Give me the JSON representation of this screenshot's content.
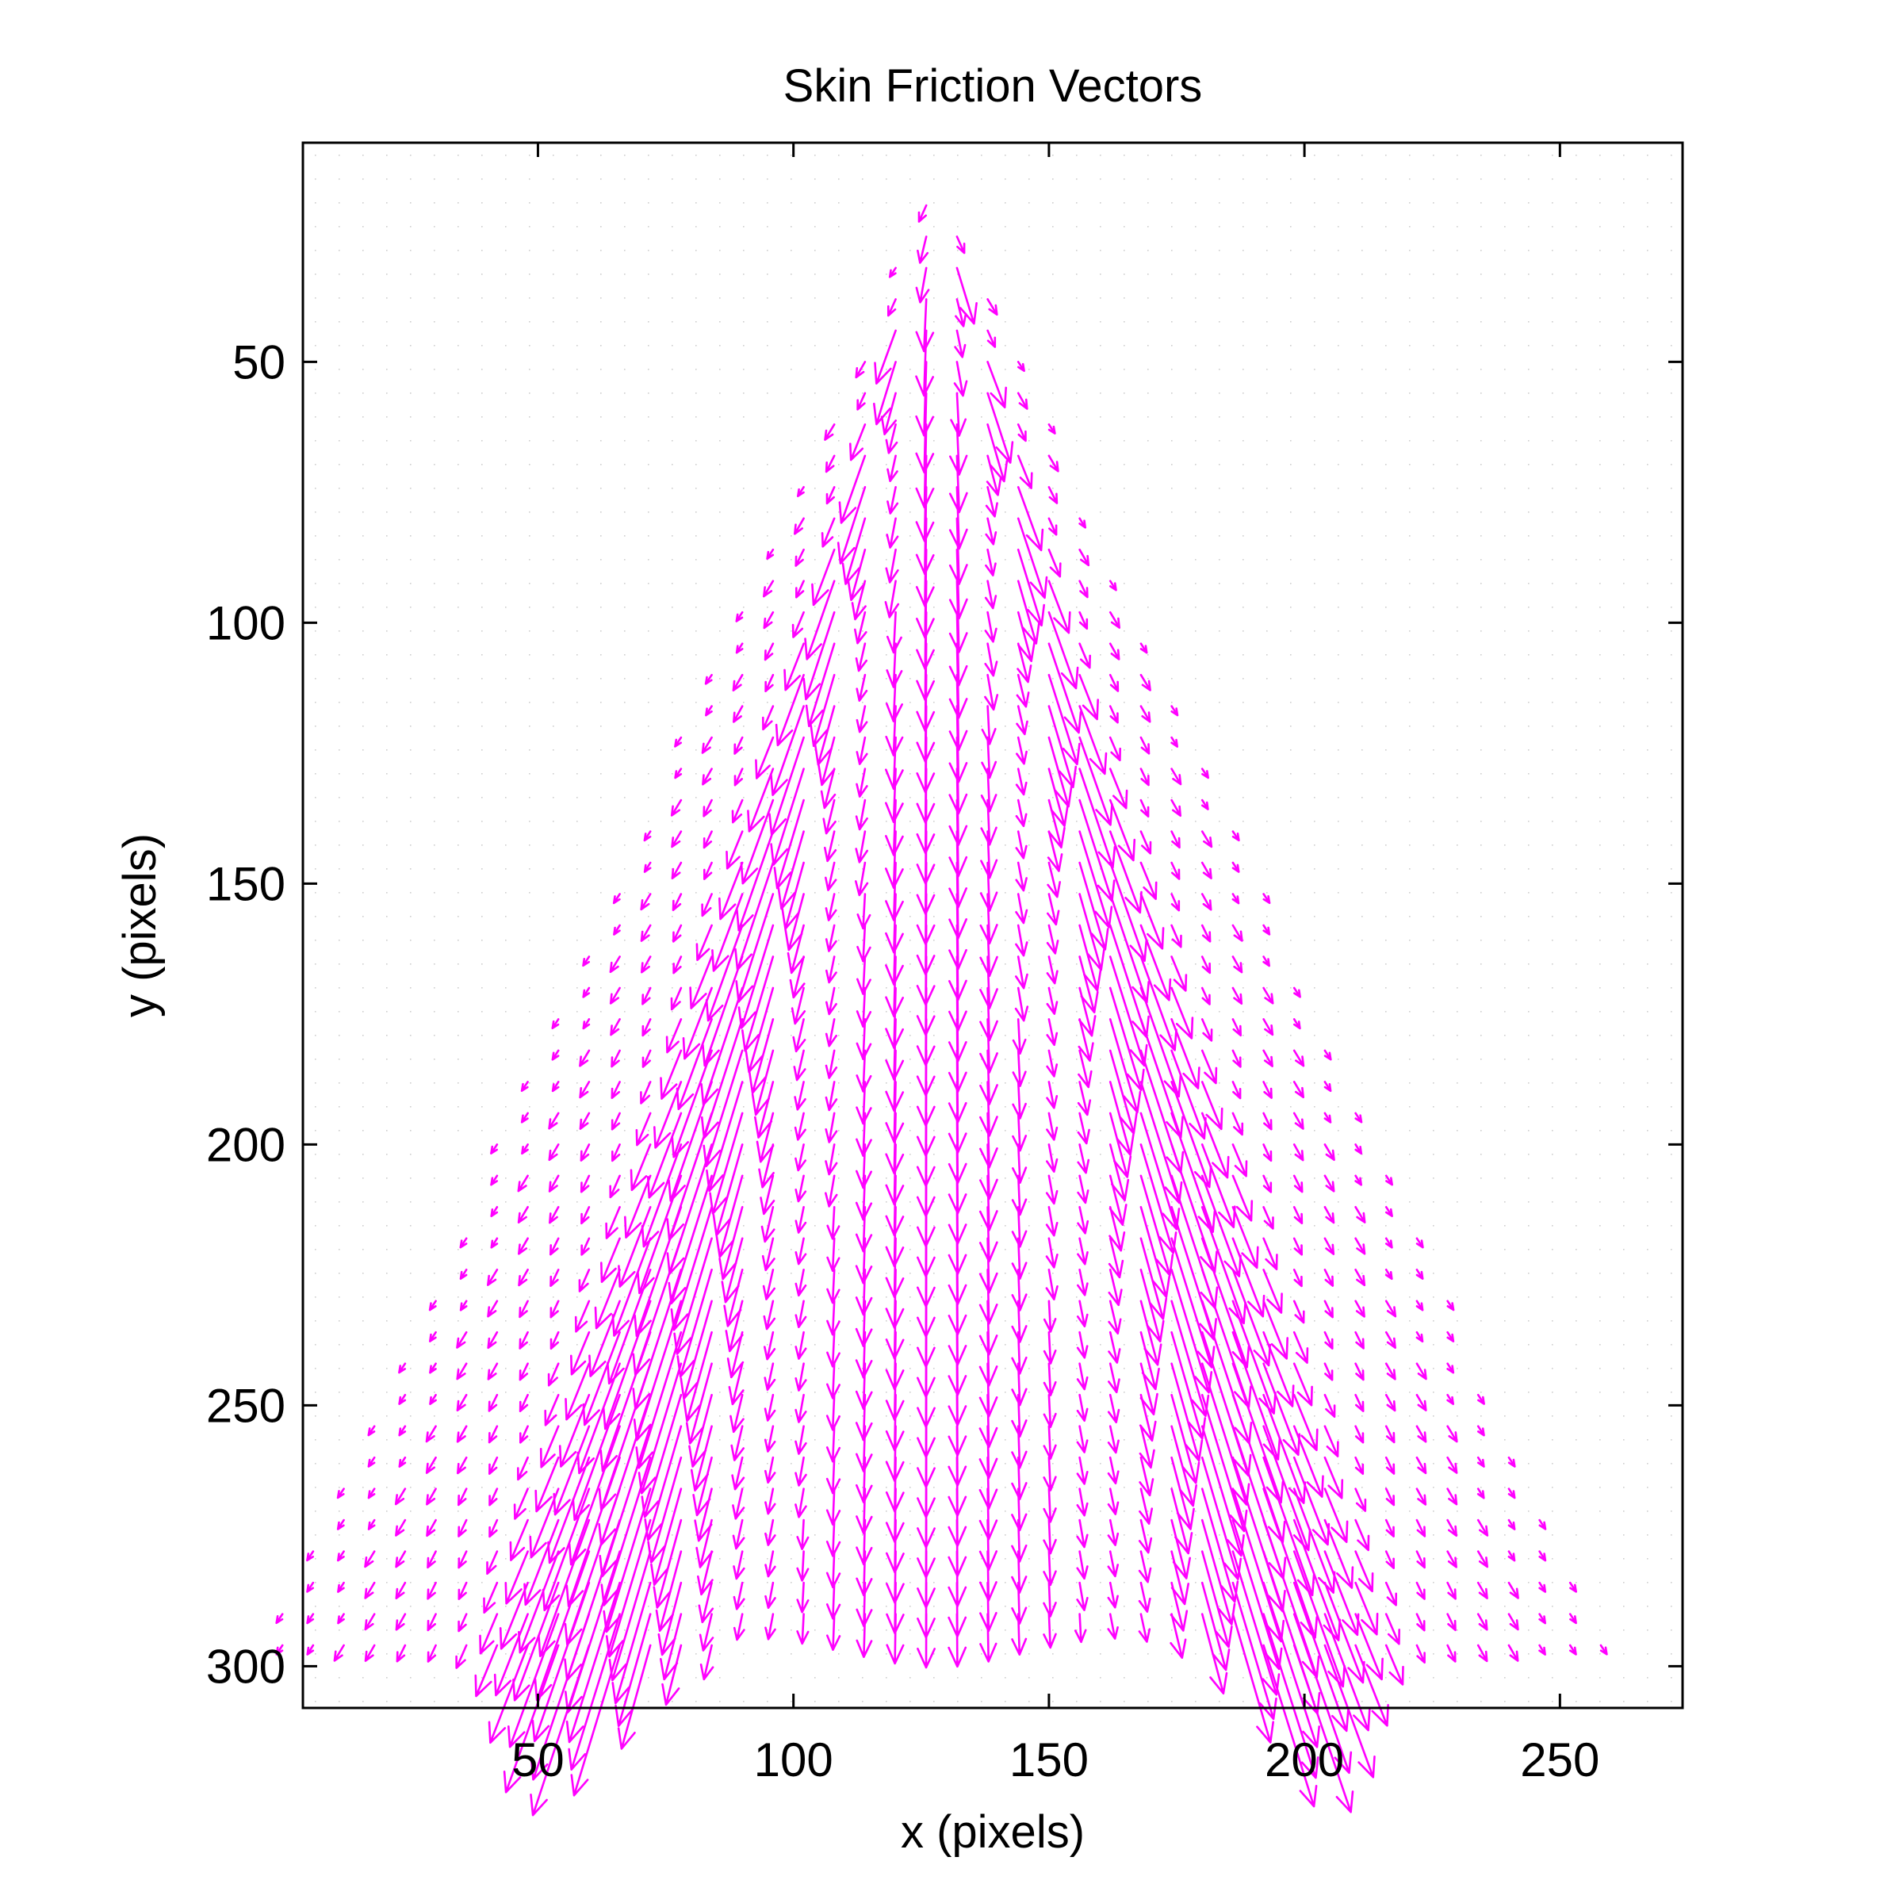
{
  "chart_data": {
    "type": "quiver",
    "title": "Skin Friction Vectors",
    "xlabel": "x (pixels)",
    "ylabel": "y (pixels)",
    "xlim": [
      4,
      274
    ],
    "ylim": [
      8,
      308
    ],
    "y_axis_reversed": true,
    "grid": "dotted",
    "xticks": [
      50,
      100,
      150,
      200,
      250
    ],
    "yticks": [
      50,
      100,
      150,
      200,
      250,
      300
    ],
    "vector_color": "#ff00ff",
    "field": {
      "grid_step": 6,
      "apex": {
        "x": 128,
        "y": 14
      },
      "left_base": {
        "x": 6,
        "y": 296
      },
      "right_base": {
        "x": 268,
        "y": 296
      },
      "bottom_row_y": 296,
      "inner_bottom_y": 292,
      "inner_x_range": [
        86,
        188
      ],
      "peak_magnitude": 30,
      "vortex_peak_x": [
        70,
        212
      ]
    }
  }
}
